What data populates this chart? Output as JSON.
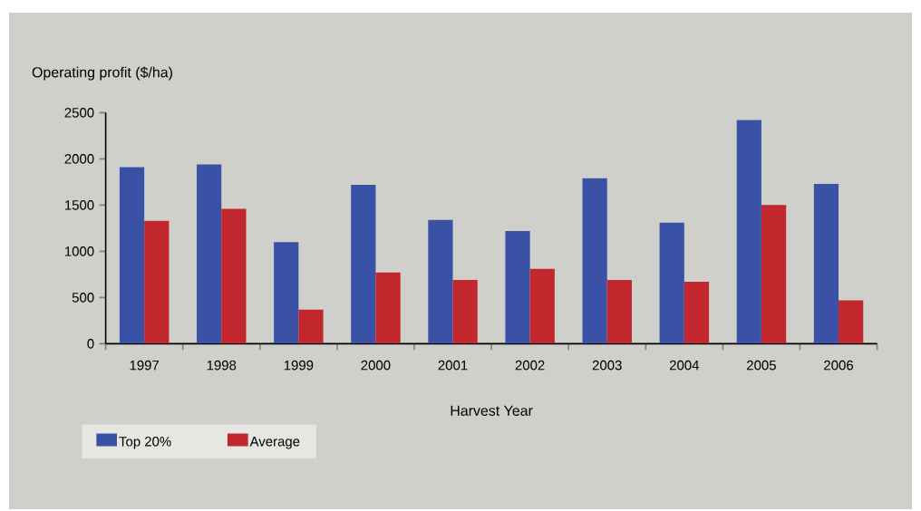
{
  "chart_data": {
    "type": "bar",
    "xlabel": "Harvest Year",
    "ylabel": "Operating profit ($/ha)",
    "categories": [
      "1997",
      "1998",
      "1999",
      "2000",
      "2001",
      "2002",
      "2003",
      "2004",
      "2005",
      "2006"
    ],
    "series": [
      {
        "name": "Top 20%",
        "color": "#3a52a5",
        "values": [
          1910,
          1940,
          1100,
          1720,
          1340,
          1220,
          1790,
          1310,
          2420,
          1730
        ]
      },
      {
        "name": "Average",
        "color": "#c1272d",
        "values": [
          1330,
          1460,
          370,
          770,
          690,
          810,
          690,
          670,
          1500,
          470
        ]
      }
    ],
    "ylim": [
      0,
      2500
    ],
    "yticks": [
      0,
      500,
      1000,
      1500,
      2000,
      2500
    ],
    "legend": "bottom left"
  }
}
